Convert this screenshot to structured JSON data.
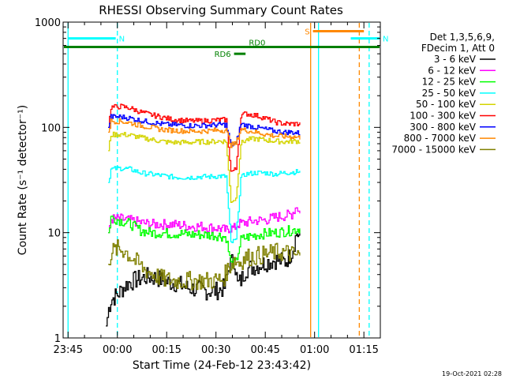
{
  "chart_data": {
    "type": "line",
    "title": "RHESSI Observing Summary Count Rates",
    "xlabel": "Start Time (24-Feb-12 23:43:42)",
    "ylabel": "Count Rate (s⁻¹ detector⁻¹)",
    "y_scale": "log",
    "ylim": [
      1,
      1000
    ],
    "xlim_minutes_from_2345": [
      -1.5,
      95
    ],
    "x_ticks": [
      {
        "label": "23:45",
        "minutes": 0
      },
      {
        "label": "00:00",
        "minutes": 15
      },
      {
        "label": "00:15",
        "minutes": 30
      },
      {
        "label": "00:30",
        "minutes": 45
      },
      {
        "label": "00:45",
        "minutes": 60
      },
      {
        "label": "01:00",
        "minutes": 75
      },
      {
        "label": "01:15",
        "minutes": 90
      }
    ],
    "y_ticks": [
      {
        "label": "1",
        "value": 1
      },
      {
        "label": "10",
        "value": 10
      },
      {
        "label": "100",
        "value": 100
      },
      {
        "label": "1000",
        "value": 1000
      }
    ],
    "legend_header": [
      "Det 1,3,5,6,9,",
      "FDecim 1, Att 0"
    ],
    "legend_position": "right",
    "footer": "19-Oct-2021 02:28",
    "series": [
      {
        "name": "3 - 6 keV",
        "color": "#000000",
        "x": [
          11.5,
          12.3,
          13,
          15,
          18,
          21,
          24,
          27,
          30,
          33,
          36,
          39,
          42,
          45,
          47.5,
          49,
          50.5,
          51.5,
          52.5,
          54,
          57,
          60,
          63,
          66,
          68,
          69.5,
          70.5
        ],
        "y": [
          1.3,
          1.9,
          2.3,
          2.6,
          3.3,
          3.6,
          3.8,
          3.7,
          3.4,
          3.3,
          3.0,
          2.9,
          2.8,
          2.8,
          3.0,
          5.0,
          5.5,
          3.2,
          3.5,
          4.5,
          4.8,
          5.2,
          5.5,
          5.3,
          6.5,
          10.0,
          9.0
        ]
      },
      {
        "name": "6 - 12 keV",
        "color": "#ff00ff",
        "x": [
          12.2,
          13,
          16,
          19,
          22,
          25,
          28,
          31,
          34,
          37,
          40,
          43,
          46,
          48,
          48.5,
          50.5,
          51.5,
          54,
          57,
          60,
          63,
          66,
          68,
          69.5,
          70.5
        ],
        "y": [
          10,
          13.5,
          13.5,
          13.0,
          12.5,
          12.0,
          12.0,
          12.0,
          11.8,
          11.5,
          11.5,
          11.2,
          11.0,
          10.5,
          11.0,
          11.0,
          12.0,
          12.5,
          13.0,
          13.2,
          14.0,
          14.5,
          15.0,
          18.0,
          15.0
        ]
      },
      {
        "name": "12 - 25 keV",
        "color": "#00ff00",
        "x": [
          12.2,
          13,
          16,
          19,
          22,
          25,
          28,
          31,
          34,
          37,
          40,
          43,
          46,
          48,
          49.5,
          51,
          52.5,
          54,
          57,
          60,
          63,
          66,
          68,
          70.5
        ],
        "y": [
          10,
          14.0,
          13.0,
          12.0,
          10.5,
          10.0,
          10.0,
          9.8,
          9.8,
          9.6,
          9.6,
          9.5,
          9.4,
          9.0,
          5.0,
          5.2,
          8.5,
          9.0,
          9.5,
          9.8,
          10.0,
          10.3,
          10.5,
          11.0
        ]
      },
      {
        "name": "25 - 50 keV",
        "color": "#00ffff",
        "x": [
          12.2,
          13,
          16,
          19,
          22,
          25,
          28,
          31,
          34,
          37,
          40,
          43,
          46,
          48,
          49.5,
          51,
          52.5,
          54,
          57,
          60,
          63,
          66,
          68,
          70.5
        ],
        "y": [
          30,
          40,
          41,
          40,
          37,
          36,
          35,
          34,
          33.5,
          33.5,
          34,
          34,
          34.5,
          34,
          8.0,
          8.5,
          33,
          36,
          37,
          37,
          36,
          37,
          37.5,
          38
        ]
      },
      {
        "name": "50 - 100 keV",
        "color": "#d4d400",
        "x": [
          12.2,
          13,
          16,
          19,
          22,
          25,
          28,
          31,
          34,
          37,
          40,
          43,
          46,
          48,
          49.5,
          51,
          52.5,
          54,
          57,
          60,
          63,
          66,
          68,
          70.5
        ],
        "y": [
          60,
          85,
          86,
          84,
          80,
          77,
          74,
          72,
          72,
          72,
          73,
          73,
          74,
          74,
          20,
          21,
          70,
          76,
          78,
          76,
          74,
          73,
          74,
          74
        ]
      },
      {
        "name": "100 - 300 keV",
        "color": "#ff0000",
        "x": [
          12.2,
          13,
          16,
          19,
          22,
          25,
          28,
          31,
          34,
          37,
          40,
          43,
          46,
          48,
          49.5,
          51,
          52.5,
          54,
          57,
          60,
          63,
          66,
          68,
          70.5
        ],
        "y": [
          100,
          155,
          158,
          152,
          140,
          132,
          126,
          120,
          117,
          115,
          115,
          116,
          118,
          118,
          38,
          40,
          130,
          135,
          130,
          122,
          112,
          108,
          108,
          108
        ]
      },
      {
        "name": "300 - 800 keV",
        "color": "#0000ff",
        "x": [
          12.2,
          13,
          16,
          19,
          22,
          25,
          28,
          31,
          34,
          37,
          40,
          43,
          46,
          48,
          49.5,
          51,
          52.5,
          54,
          57,
          60,
          63,
          66,
          68,
          70.5
        ],
        "y": [
          100,
          126,
          126,
          122,
          116,
          112,
          108,
          106,
          105,
          104,
          104,
          105,
          106,
          106,
          68,
          70,
          108,
          105,
          100,
          96,
          92,
          90,
          90,
          88
        ]
      },
      {
        "name": "800 - 7000 keV",
        "color": "#ff8800",
        "x": [
          12.2,
          13,
          16,
          19,
          22,
          25,
          28,
          31,
          34,
          37,
          40,
          43,
          46,
          48,
          49.5,
          51,
          52.5,
          54,
          57,
          60,
          63,
          66,
          68,
          70.5
        ],
        "y": [
          90,
          115,
          114,
          110,
          104,
          100,
          96,
          94,
          93,
          92,
          92,
          93,
          94,
          94,
          68,
          70,
          96,
          94,
          90,
          86,
          83,
          82,
          82,
          80
        ]
      },
      {
        "name": "7000 - 15000 keV",
        "color": "#808000",
        "x": [
          12.2,
          13,
          15,
          17,
          20,
          23,
          26,
          29,
          32,
          35,
          38,
          41,
          44,
          47,
          48.5,
          50.5,
          52,
          54,
          57,
          60,
          63,
          66,
          68,
          70.5
        ],
        "y": [
          5.0,
          6.5,
          7.0,
          6.8,
          5.5,
          4.5,
          4.0,
          3.6,
          3.5,
          3.5,
          3.5,
          3.5,
          3.5,
          3.6,
          4.5,
          5.5,
          5.2,
          5.8,
          6.0,
          6.2,
          6.5,
          6.5,
          6.2,
          6.0
        ]
      }
    ],
    "annotations": [
      {
        "label": "N",
        "color": "#00ffff",
        "x_start": 0,
        "x_end": 14.5,
        "y_level": 700
      },
      {
        "label": "N",
        "color": "#00ffff",
        "x_start": 86,
        "x_end": 95,
        "y_level": 700
      },
      {
        "label": "RD0",
        "color": "#008000",
        "x_start": -1.5,
        "x_end": 95,
        "y_level": 580
      },
      {
        "label": "RD6",
        "color": "#008000",
        "x_start": 50.5,
        "x_end": 54,
        "y_level": 500
      },
      {
        "label": "S",
        "color": "#ff8800",
        "x_start": 74.5,
        "x_end": 90,
        "y_level": 820
      }
    ],
    "vertical_lines": [
      {
        "x": 0,
        "color": "#00ffff",
        "style": "solid"
      },
      {
        "x": 15,
        "color": "#00ffff",
        "style": "dashed"
      },
      {
        "x": 73.8,
        "color": "#ff8800",
        "style": "solid"
      },
      {
        "x": 76.2,
        "color": "#00ffff",
        "style": "solid"
      },
      {
        "x": 88.6,
        "color": "#ff8800",
        "style": "dashed"
      },
      {
        "x": 91.6,
        "color": "#00ffff",
        "style": "dashed"
      }
    ]
  }
}
